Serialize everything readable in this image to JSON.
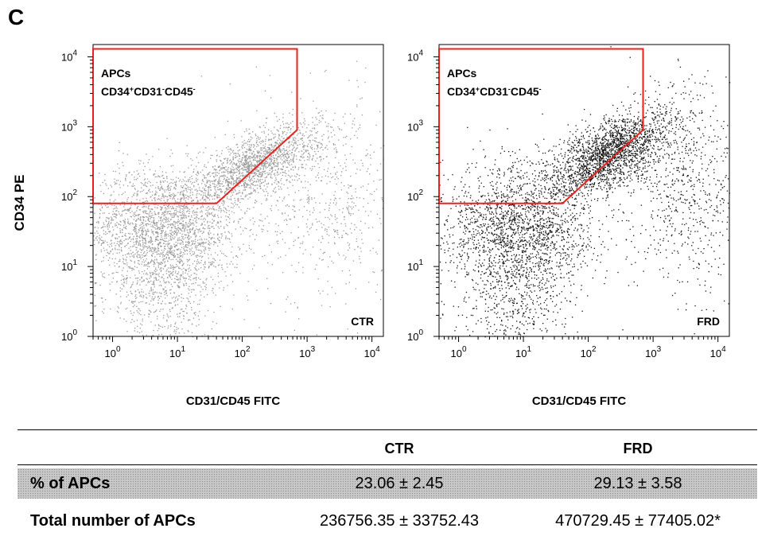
{
  "panel_letter": "C",
  "y_axis_label": "CD34 PE",
  "x_axis_label": "CD31/CD45 FITC",
  "table": {
    "columns": [
      "CTR",
      "FRD"
    ],
    "rows": [
      {
        "label": "% of APCs",
        "values": [
          "23.06 ± 2.45",
          "29.13 ± 3.58"
        ]
      },
      {
        "label": "Total number of  APCs",
        "values": [
          "236756.35 ± 33752.43",
          "470729.45 ± 77405.02*"
        ]
      }
    ]
  },
  "colors": {
    "ctr_dots": "#9a9a9a",
    "frd_dots": "#111111",
    "gate": "#e8231f"
  },
  "chart_data": [
    {
      "type": "scatter",
      "name": "CTR",
      "title": "",
      "corner_label": "CTR",
      "xlabel": "CD31/CD45 FITC",
      "ylabel": "CD34 PE",
      "log_scale": true,
      "xlim": [
        0.5,
        15000
      ],
      "ylim": [
        1,
        15000
      ],
      "x_ticks": [
        "10^0",
        "10^1",
        "10^2",
        "10^3",
        "10^4"
      ],
      "y_ticks": [
        "10^0",
        "10^1",
        "10^2",
        "10^3",
        "10^4"
      ],
      "grid": false,
      "gate": {
        "label_line1": "APCs",
        "label_line2": "CD34+CD31-CD45-",
        "vertices": [
          [
            0.5,
            80
          ],
          [
            40,
            80
          ],
          [
            700,
            900
          ],
          [
            700,
            13000
          ],
          [
            0.5,
            13000
          ]
        ],
        "percent_gated": "23.06 ± 2.45"
      },
      "populations": [
        {
          "center": [
            6,
            35
          ],
          "spread_decades": [
            0.6,
            0.45
          ],
          "weight": 0.45
        },
        {
          "center": [
            150,
            300
          ],
          "spread_decades": [
            0.5,
            0.35
          ],
          "weight": 0.3
        },
        {
          "center": [
            6,
            4
          ],
          "spread_decades": [
            0.4,
            0.55
          ],
          "weight": 0.12
        },
        {
          "center": [
            2000,
            100
          ],
          "spread_decades": [
            0.6,
            0.8
          ],
          "weight": 0.13
        }
      ]
    },
    {
      "type": "scatter",
      "name": "FRD",
      "title": "",
      "corner_label": "FRD",
      "xlabel": "CD31/CD45 FITC",
      "ylabel": "CD34 PE",
      "log_scale": true,
      "xlim": [
        0.5,
        15000
      ],
      "ylim": [
        1,
        15000
      ],
      "x_ticks": [
        "10^0",
        "10^1",
        "10^2",
        "10^3",
        "10^4"
      ],
      "y_ticks": [
        "10^0",
        "10^1",
        "10^2",
        "10^3",
        "10^4"
      ],
      "grid": false,
      "gate": {
        "label_line1": "APCs",
        "label_line2": "CD34+CD31-CD45-",
        "vertices": [
          [
            0.5,
            80
          ],
          [
            40,
            80
          ],
          [
            700,
            900
          ],
          [
            700,
            13000
          ],
          [
            0.5,
            13000
          ]
        ],
        "percent_gated": "29.13 ± 3.58"
      },
      "populations": [
        {
          "center": [
            8,
            40
          ],
          "spread_decades": [
            0.6,
            0.45
          ],
          "weight": 0.35
        },
        {
          "center": [
            200,
            500
          ],
          "spread_decades": [
            0.45,
            0.4
          ],
          "weight": 0.38
        },
        {
          "center": [
            8,
            4
          ],
          "spread_decades": [
            0.45,
            0.55
          ],
          "weight": 0.12
        },
        {
          "center": [
            3000,
            150
          ],
          "spread_decades": [
            0.5,
            0.8
          ],
          "weight": 0.15
        }
      ]
    }
  ]
}
